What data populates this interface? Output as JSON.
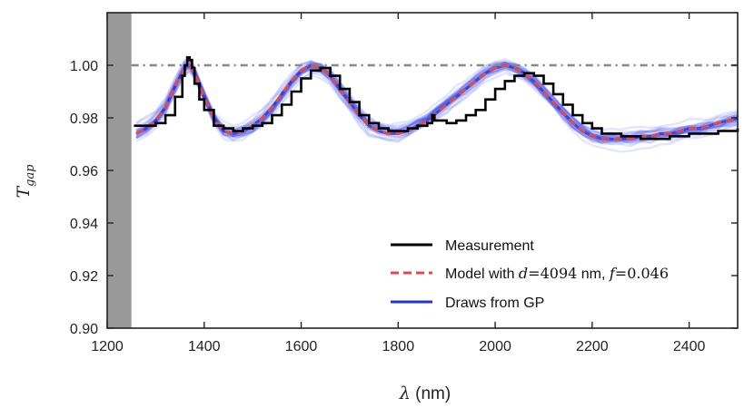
{
  "chart_data": {
    "type": "line",
    "xlabel_symbol": "λ",
    "xlabel_unit": "(nm)",
    "ylabel_main": "T",
    "ylabel_sub": "gap",
    "xlim": [
      1200,
      2500
    ],
    "ylim": [
      0.9,
      1.02
    ],
    "xticks": [
      1200,
      1400,
      1600,
      1800,
      2000,
      2200,
      2400
    ],
    "xtick_labels": [
      "1200",
      "1400",
      "1600",
      "1800",
      "2000",
      "2200",
      "2400"
    ],
    "yticks": [
      0.9,
      0.92,
      0.94,
      0.96,
      0.98,
      1.0
    ],
    "ytick_labels": [
      "0.90",
      "0.92",
      "0.94",
      "0.96",
      "0.98",
      "1.00"
    ],
    "masked_region": {
      "x_start": 1200,
      "x_end": 1250,
      "color": "#999999"
    },
    "reference_line": {
      "y": 1.0,
      "style": "dash-dot",
      "color": "#888888"
    },
    "gp_draws": {
      "count": 30,
      "color": "#3344ee",
      "spread": 0.0025
    },
    "series": [
      {
        "name": "Measurement",
        "kind": "measurement",
        "color": "#000000",
        "x": [
          1255,
          1280,
          1300,
          1320,
          1340,
          1355,
          1360,
          1365,
          1370,
          1375,
          1380,
          1390,
          1400,
          1420,
          1440,
          1460,
          1480,
          1500,
          1520,
          1540,
          1560,
          1580,
          1600,
          1620,
          1640,
          1660,
          1680,
          1700,
          1720,
          1740,
          1760,
          1780,
          1800,
          1820,
          1840,
          1860,
          1870,
          1875,
          1880,
          1900,
          1920,
          1940,
          1960,
          1980,
          2000,
          2020,
          2040,
          2060,
          2080,
          2100,
          2120,
          2140,
          2160,
          2180,
          2200,
          2220,
          2240,
          2260,
          2280,
          2300,
          2320,
          2340,
          2360,
          2380,
          2400,
          2420,
          2440,
          2460,
          2480,
          2490,
          2500
        ],
        "y": [
          0.977,
          0.977,
          0.978,
          0.981,
          0.988,
          0.996,
          1.0,
          1.003,
          1.002,
          0.999,
          0.993,
          0.987,
          0.983,
          0.977,
          0.976,
          0.975,
          0.976,
          0.977,
          0.978,
          0.981,
          0.985,
          0.99,
          0.995,
          0.998,
          0.999,
          0.996,
          0.991,
          0.986,
          0.981,
          0.978,
          0.976,
          0.975,
          0.975,
          0.976,
          0.977,
          0.978,
          0.981,
          0.979,
          0.979,
          0.978,
          0.979,
          0.981,
          0.983,
          0.987,
          0.991,
          0.994,
          0.996,
          0.997,
          0.996,
          0.993,
          0.989,
          0.985,
          0.981,
          0.978,
          0.976,
          0.974,
          0.974,
          0.973,
          0.973,
          0.972,
          0.972,
          0.972,
          0.973,
          0.973,
          0.974,
          0.974,
          0.974,
          0.975,
          0.975,
          0.975,
          0.976
        ]
      },
      {
        "name": "Model with d=4094 nm, f=0.046",
        "kind": "model",
        "color": "#e24a4a",
        "x": [
          1260,
          1280,
          1300,
          1320,
          1340,
          1360,
          1370,
          1380,
          1400,
          1420,
          1440,
          1460,
          1480,
          1500,
          1520,
          1540,
          1560,
          1580,
          1600,
          1620,
          1640,
          1660,
          1680,
          1700,
          1720,
          1740,
          1760,
          1780,
          1800,
          1820,
          1840,
          1860,
          1880,
          1900,
          1920,
          1940,
          1960,
          1980,
          2000,
          2020,
          2040,
          2060,
          2080,
          2100,
          2120,
          2140,
          2160,
          2180,
          2200,
          2220,
          2240,
          2260,
          2280,
          2300,
          2320,
          2340,
          2360,
          2380,
          2400,
          2420,
          2440,
          2460,
          2480,
          2500
        ],
        "y": [
          0.974,
          0.976,
          0.979,
          0.984,
          0.992,
          0.999,
          1.0,
          0.997,
          0.988,
          0.98,
          0.975,
          0.974,
          0.975,
          0.977,
          0.98,
          0.984,
          0.989,
          0.994,
          0.998,
          1.0,
          0.999,
          0.996,
          0.991,
          0.986,
          0.981,
          0.977,
          0.975,
          0.974,
          0.974,
          0.975,
          0.977,
          0.979,
          0.982,
          0.985,
          0.988,
          0.991,
          0.994,
          0.997,
          0.999,
          1.0,
          0.999,
          0.997,
          0.994,
          0.99,
          0.986,
          0.982,
          0.978,
          0.975,
          0.973,
          0.972,
          0.972,
          0.972,
          0.972,
          0.973,
          0.973,
          0.974,
          0.974,
          0.975,
          0.976,
          0.976,
          0.977,
          0.978,
          0.979,
          0.98
        ]
      },
      {
        "name": "Draws from GP",
        "kind": "gp",
        "color": "#2233dd",
        "x": [
          1260,
          1280,
          1300,
          1320,
          1340,
          1360,
          1370,
          1380,
          1400,
          1420,
          1440,
          1460,
          1480,
          1500,
          1520,
          1540,
          1560,
          1580,
          1600,
          1620,
          1640,
          1660,
          1680,
          1700,
          1720,
          1740,
          1760,
          1780,
          1800,
          1820,
          1840,
          1860,
          1880,
          1900,
          1920,
          1940,
          1960,
          1980,
          2000,
          2020,
          2040,
          2060,
          2080,
          2100,
          2120,
          2140,
          2160,
          2180,
          2200,
          2220,
          2240,
          2260,
          2280,
          2300,
          2320,
          2340,
          2360,
          2380,
          2400,
          2420,
          2440,
          2460,
          2480,
          2500
        ],
        "y": [
          0.974,
          0.976,
          0.979,
          0.984,
          0.992,
          0.999,
          1.0,
          0.997,
          0.988,
          0.98,
          0.975,
          0.974,
          0.975,
          0.977,
          0.98,
          0.984,
          0.989,
          0.994,
          0.998,
          1.0,
          0.999,
          0.996,
          0.991,
          0.986,
          0.981,
          0.977,
          0.975,
          0.974,
          0.974,
          0.975,
          0.977,
          0.979,
          0.982,
          0.985,
          0.988,
          0.991,
          0.994,
          0.997,
          0.999,
          1.0,
          0.999,
          0.997,
          0.994,
          0.99,
          0.986,
          0.982,
          0.978,
          0.975,
          0.973,
          0.972,
          0.972,
          0.972,
          0.972,
          0.973,
          0.973,
          0.974,
          0.974,
          0.975,
          0.976,
          0.976,
          0.977,
          0.978,
          0.979,
          0.98
        ]
      }
    ],
    "legend": {
      "position": "lower-right",
      "entries": [
        {
          "kind": "measurement",
          "label": "Measurement"
        },
        {
          "kind": "model",
          "prefix": "Model with ",
          "var1": "d",
          "eq1": "=",
          "val1": "4094",
          "unit": " nm, ",
          "var2": "f",
          "eq2": "=",
          "val2": "0.046"
        },
        {
          "kind": "gp",
          "label": "Draws from GP"
        }
      ]
    }
  }
}
